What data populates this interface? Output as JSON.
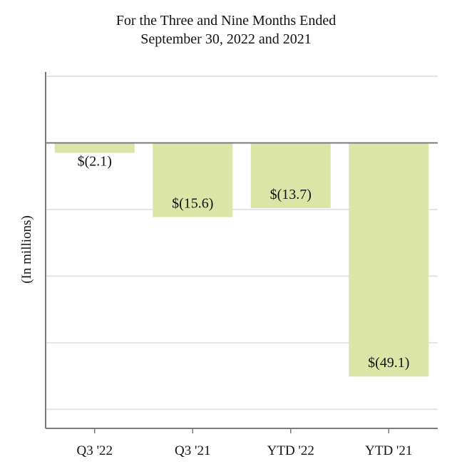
{
  "chart_data": {
    "type": "bar",
    "title": "For the Three and Nine Months Ended",
    "subtitle": "September 30, 2022 and 2021",
    "ylabel": "(In millions)",
    "categories": [
      "Q3 '22",
      "Q3 '21",
      "YTD '22",
      "YTD '21"
    ],
    "values": [
      -2.1,
      -15.6,
      -13.7,
      -49.1
    ],
    "data_labels": [
      "$(2.1)",
      "$(15.6)",
      "$(13.7)",
      "$(49.1)"
    ],
    "ylim": [
      -60,
      14
    ],
    "gridlines": [
      14,
      0,
      -14,
      -28,
      -42,
      -56
    ],
    "grid": true,
    "legend": "none",
    "bar_color": "#dce5a8",
    "grid_color": "#e4e4e4",
    "axis_color": "#7a7a7a"
  }
}
